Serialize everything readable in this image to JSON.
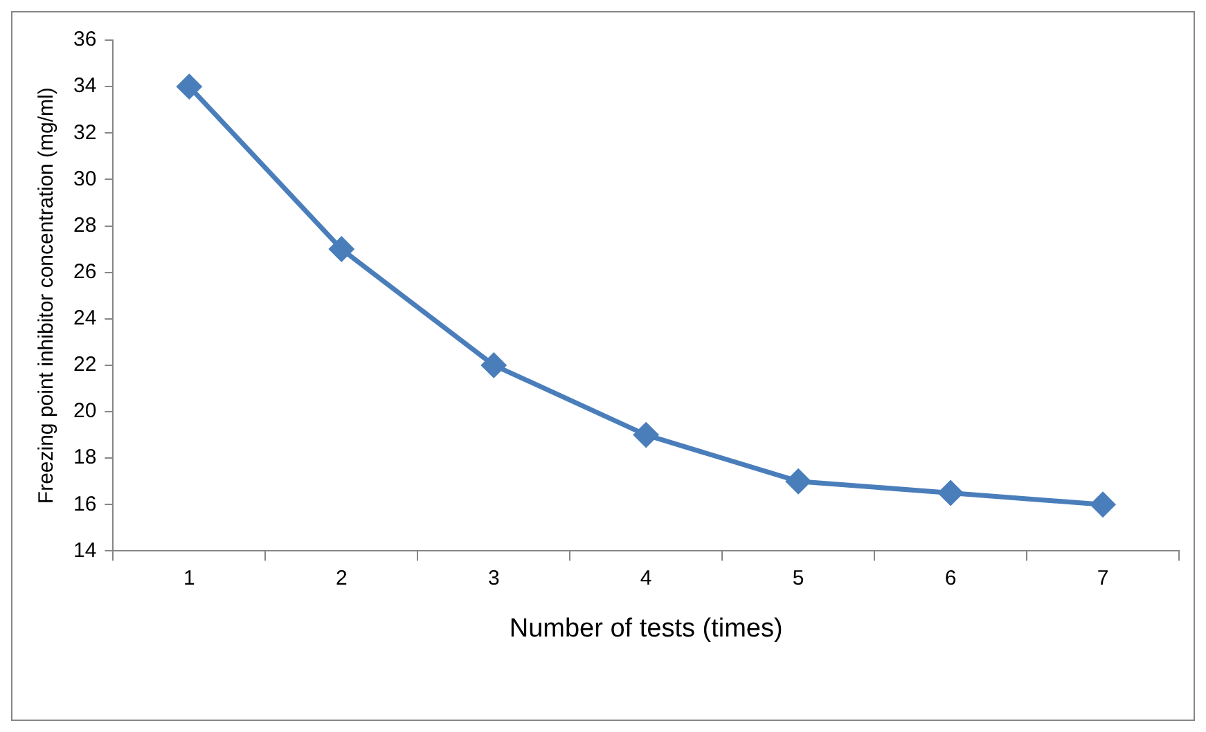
{
  "chart_data": {
    "type": "line",
    "xlabel": "Number of tests (times)",
    "ylabel": "Freezing point inhibitor concentration (mg/ml)",
    "categories": [
      "1",
      "2",
      "3",
      "4",
      "5",
      "6",
      "7"
    ],
    "series": [
      {
        "color": "#4a7ebb",
        "values": [
          34,
          27,
          22,
          19,
          17,
          16.5,
          16
        ]
      }
    ],
    "ylim": [
      14,
      36
    ],
    "yticks": [
      14,
      16,
      18,
      20,
      22,
      24,
      26,
      28,
      30,
      32,
      34,
      36
    ],
    "grid": false,
    "legend": false,
    "marker": "diamond",
    "line_style": "solid"
  }
}
